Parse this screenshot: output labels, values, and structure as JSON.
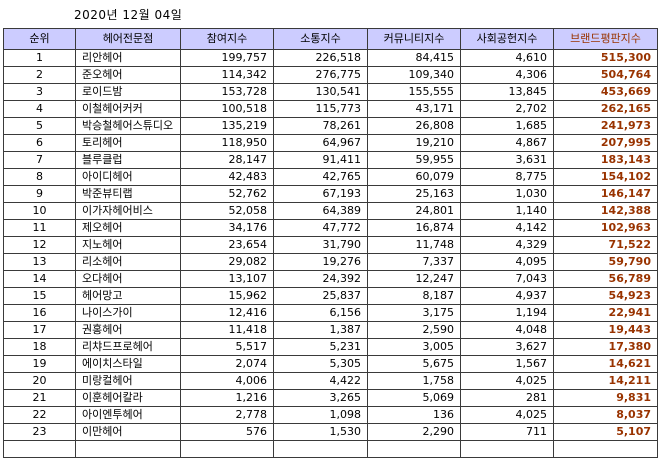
{
  "date": "2020년 12월 04일",
  "colors": {
    "header_bg": "#ccccff",
    "brand_text": "#993300"
  },
  "table": {
    "headers": [
      "순위",
      "헤어전문점",
      "참여지수",
      "소통지수",
      "커뮤니티지수",
      "사회공헌지수",
      "브랜드평판지수"
    ],
    "rows": [
      {
        "rank": "1",
        "name": "리안헤어",
        "participation": "199,757",
        "communication": "226,518",
        "community": "84,415",
        "social": "4,610",
        "brand": "515,300"
      },
      {
        "rank": "2",
        "name": "준오헤어",
        "participation": "114,342",
        "communication": "276,775",
        "community": "109,340",
        "social": "4,306",
        "brand": "504,764"
      },
      {
        "rank": "3",
        "name": "로이드밤",
        "participation": "153,728",
        "communication": "130,541",
        "community": "155,555",
        "social": "13,845",
        "brand": "453,669"
      },
      {
        "rank": "4",
        "name": "이철헤어커커",
        "participation": "100,518",
        "communication": "115,773",
        "community": "43,171",
        "social": "2,702",
        "brand": "262,165"
      },
      {
        "rank": "5",
        "name": "박승철헤어스튜디오",
        "participation": "135,219",
        "communication": "78,261",
        "community": "26,808",
        "social": "1,685",
        "brand": "241,973"
      },
      {
        "rank": "6",
        "name": "토리헤어",
        "participation": "118,950",
        "communication": "64,967",
        "community": "19,210",
        "social": "4,867",
        "brand": "207,995"
      },
      {
        "rank": "7",
        "name": "블루클럽",
        "participation": "28,147",
        "communication": "91,411",
        "community": "59,955",
        "social": "3,631",
        "brand": "183,143"
      },
      {
        "rank": "8",
        "name": "아이디헤어",
        "participation": "42,483",
        "communication": "42,765",
        "community": "60,079",
        "social": "8,775",
        "brand": "154,102"
      },
      {
        "rank": "9",
        "name": "박준뷰티랩",
        "participation": "52,762",
        "communication": "67,193",
        "community": "25,163",
        "social": "1,030",
        "brand": "146,147"
      },
      {
        "rank": "10",
        "name": "이가자헤어비스",
        "participation": "52,058",
        "communication": "64,389",
        "community": "24,801",
        "social": "1,140",
        "brand": "142,388"
      },
      {
        "rank": "11",
        "name": "제오헤어",
        "participation": "34,176",
        "communication": "47,772",
        "community": "16,874",
        "social": "4,142",
        "brand": "102,963"
      },
      {
        "rank": "12",
        "name": "지노헤어",
        "participation": "23,654",
        "communication": "31,790",
        "community": "11,748",
        "social": "4,329",
        "brand": "71,522"
      },
      {
        "rank": "13",
        "name": "리소헤어",
        "participation": "29,082",
        "communication": "19,276",
        "community": "7,337",
        "social": "4,095",
        "brand": "59,790"
      },
      {
        "rank": "14",
        "name": "오다헤어",
        "participation": "13,107",
        "communication": "24,392",
        "community": "12,247",
        "social": "7,043",
        "brand": "56,789"
      },
      {
        "rank": "15",
        "name": "헤어망고",
        "participation": "15,962",
        "communication": "25,837",
        "community": "8,187",
        "social": "4,937",
        "brand": "54,923"
      },
      {
        "rank": "16",
        "name": "나이스가이",
        "participation": "12,416",
        "communication": "6,156",
        "community": "3,175",
        "social": "1,194",
        "brand": "22,941"
      },
      {
        "rank": "17",
        "name": "권홍헤어",
        "participation": "11,418",
        "communication": "1,387",
        "community": "2,590",
        "social": "4,048",
        "brand": "19,443"
      },
      {
        "rank": "18",
        "name": "리챠드프로헤어",
        "participation": "5,517",
        "communication": "5,231",
        "community": "3,005",
        "social": "3,627",
        "brand": "17,380"
      },
      {
        "rank": "19",
        "name": "에이치스타일",
        "participation": "2,074",
        "communication": "5,305",
        "community": "5,675",
        "social": "1,567",
        "brand": "14,621"
      },
      {
        "rank": "20",
        "name": "미랑컬헤어",
        "participation": "4,006",
        "communication": "4,422",
        "community": "1,758",
        "social": "4,025",
        "brand": "14,211"
      },
      {
        "rank": "21",
        "name": "이훈헤어칼라",
        "participation": "1,216",
        "communication": "3,265",
        "community": "5,069",
        "social": "281",
        "brand": "9,831"
      },
      {
        "rank": "22",
        "name": "아이엔투헤어",
        "participation": "2,778",
        "communication": "1,098",
        "community": "136",
        "social": "4,025",
        "brand": "8,037"
      },
      {
        "rank": "23",
        "name": "이만헤어",
        "participation": "576",
        "communication": "1,530",
        "community": "2,290",
        "social": "711",
        "brand": "5,107"
      }
    ]
  },
  "chart_data": {
    "type": "table",
    "title": "2020년 12월 04일 헤어전문점 브랜드평판지수",
    "columns": [
      "순위",
      "헤어전문점",
      "참여지수",
      "소통지수",
      "커뮤니티지수",
      "사회공헌지수",
      "브랜드평판지수"
    ],
    "rows": [
      [
        1,
        "리안헤어",
        199757,
        226518,
        84415,
        4610,
        515300
      ],
      [
        2,
        "준오헤어",
        114342,
        276775,
        109340,
        4306,
        504764
      ],
      [
        3,
        "로이드밤",
        153728,
        130541,
        155555,
        13845,
        453669
      ],
      [
        4,
        "이철헤어커커",
        100518,
        115773,
        43171,
        2702,
        262165
      ],
      [
        5,
        "박승철헤어스튜디오",
        135219,
        78261,
        26808,
        1685,
        241973
      ],
      [
        6,
        "토리헤어",
        118950,
        64967,
        19210,
        4867,
        207995
      ],
      [
        7,
        "블루클럽",
        28147,
        91411,
        59955,
        3631,
        183143
      ],
      [
        8,
        "아이디헤어",
        42483,
        42765,
        60079,
        8775,
        154102
      ],
      [
        9,
        "박준뷰티랩",
        52762,
        67193,
        25163,
        1030,
        146147
      ],
      [
        10,
        "이가자헤어비스",
        52058,
        64389,
        24801,
        1140,
        142388
      ],
      [
        11,
        "제오헤어",
        34176,
        47772,
        16874,
        4142,
        102963
      ],
      [
        12,
        "지노헤어",
        23654,
        31790,
        11748,
        4329,
        71522
      ],
      [
        13,
        "리소헤어",
        29082,
        19276,
        7337,
        4095,
        59790
      ],
      [
        14,
        "오다헤어",
        13107,
        24392,
        12247,
        7043,
        56789
      ],
      [
        15,
        "헤어망고",
        15962,
        25837,
        8187,
        4937,
        54923
      ],
      [
        16,
        "나이스가이",
        12416,
        6156,
        3175,
        1194,
        22941
      ],
      [
        17,
        "권홍헤어",
        11418,
        1387,
        2590,
        4048,
        19443
      ],
      [
        18,
        "리챠드프로헤어",
        5517,
        5231,
        3005,
        3627,
        17380
      ],
      [
        19,
        "에이치스타일",
        2074,
        5305,
        5675,
        1567,
        14621
      ],
      [
        20,
        "미랑컬헤어",
        4006,
        4422,
        1758,
        4025,
        14211
      ],
      [
        21,
        "이훈헤어칼라",
        1216,
        3265,
        5069,
        281,
        9831
      ],
      [
        22,
        "아이엔투헤어",
        2778,
        1098,
        136,
        4025,
        8037
      ],
      [
        23,
        "이만헤어",
        576,
        1530,
        2290,
        711,
        5107
      ]
    ]
  }
}
